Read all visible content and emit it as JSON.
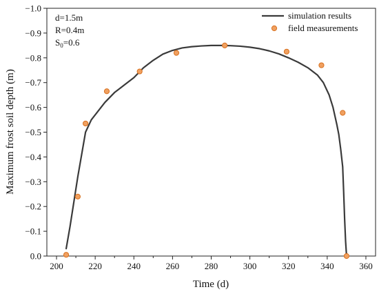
{
  "chart_data": {
    "type": "line",
    "xlabel": "Time (d)",
    "ylabel": "Maximum frost soil depth (m)",
    "xlim": [
      195,
      365
    ],
    "ylim": [
      0.0,
      -1.0
    ],
    "x_ticks": [
      200,
      220,
      240,
      260,
      280,
      300,
      320,
      340,
      360
    ],
    "y_ticks": [
      0.0,
      -0.1,
      -0.2,
      -0.3,
      -0.4,
      -0.5,
      -0.6,
      -0.7,
      -0.8,
      -0.9,
      -1.0
    ],
    "x_tick_labels": [
      "200",
      "220",
      "240",
      "260",
      "280",
      "300",
      "320",
      "340",
      "360"
    ],
    "y_tick_labels": [
      "0.0",
      "−0.1",
      "−0.2",
      "−0.3",
      "−0.4",
      "−0.5",
      "−0.6",
      "−0.7",
      "−0.8",
      "−0.9",
      "−1.0"
    ],
    "annotations": {
      "line1": "d=1.5m",
      "line2": "R=0.4m",
      "line3_main": "S",
      "line3_sub": "0",
      "line3_rest": "=0.6"
    },
    "legend_position": "top-right",
    "series": [
      {
        "name": "simulation results",
        "kind": "line",
        "color": "#3a3a3a",
        "x": [
          205,
          207,
          209,
          211,
          213,
          215,
          218,
          221,
          225,
          230,
          235,
          240,
          245,
          250,
          255,
          260,
          265,
          270,
          275,
          280,
          285,
          290,
          295,
          300,
          305,
          310,
          315,
          320,
          325,
          330,
          335,
          338,
          341,
          343,
          345,
          346,
          347,
          348,
          348.5,
          349,
          349.5,
          350
        ],
        "y": [
          -0.03,
          -0.12,
          -0.22,
          -0.32,
          -0.41,
          -0.5,
          -0.55,
          -0.58,
          -0.62,
          -0.66,
          -0.69,
          -0.72,
          -0.76,
          -0.79,
          -0.815,
          -0.83,
          -0.84,
          -0.845,
          -0.848,
          -0.85,
          -0.85,
          -0.849,
          -0.847,
          -0.843,
          -0.837,
          -0.828,
          -0.816,
          -0.8,
          -0.782,
          -0.76,
          -0.73,
          -0.7,
          -0.65,
          -0.6,
          -0.53,
          -0.49,
          -0.43,
          -0.36,
          -0.26,
          -0.15,
          -0.06,
          0.0
        ]
      },
      {
        "name": "field measurements",
        "kind": "scatter",
        "color": "#f0a060",
        "stroke": "#d8701e",
        "x": [
          205,
          211,
          215,
          226,
          243,
          262,
          287,
          319,
          337,
          348,
          350
        ],
        "y": [
          -0.005,
          -0.24,
          -0.535,
          -0.665,
          -0.745,
          -0.82,
          -0.85,
          -0.825,
          -0.77,
          -0.578,
          0.0
        ]
      }
    ]
  }
}
